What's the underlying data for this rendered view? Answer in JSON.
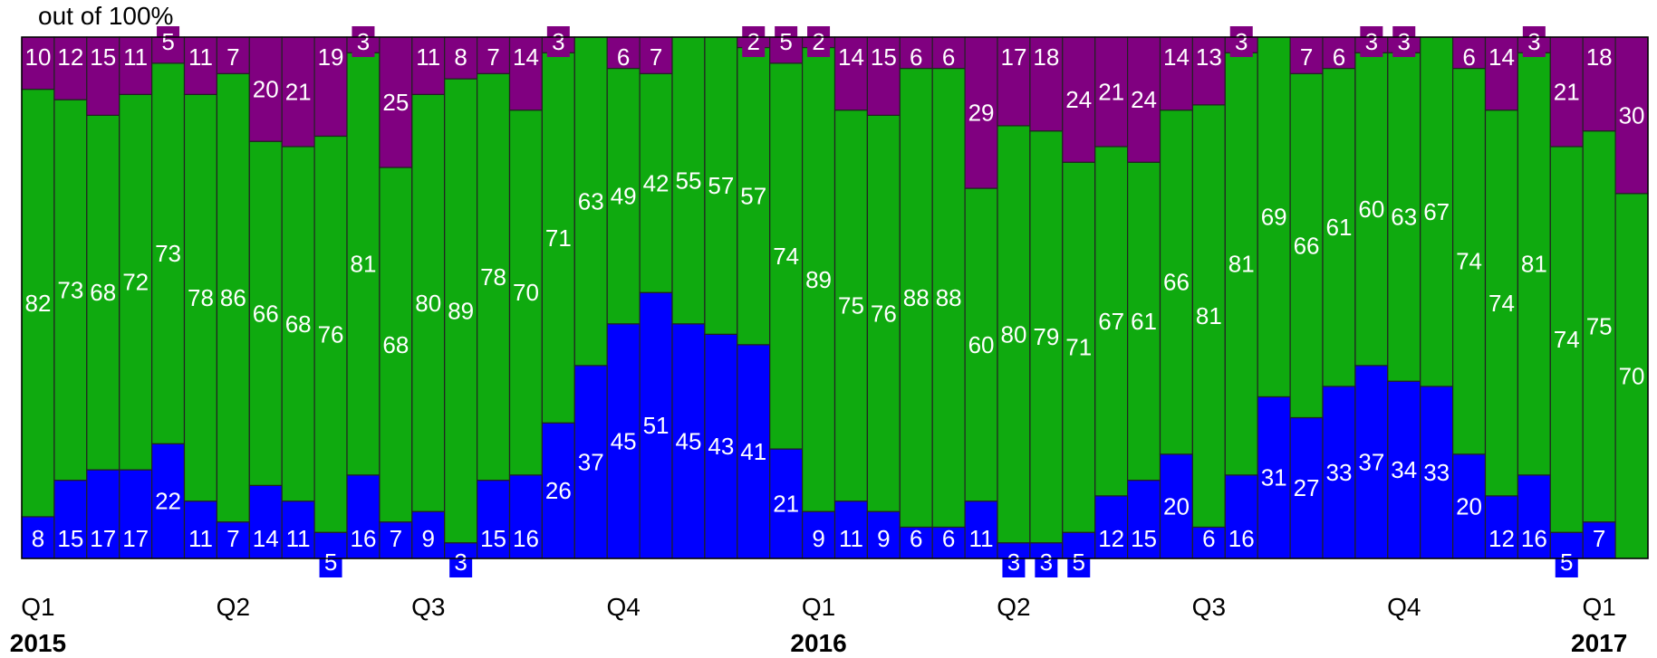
{
  "unit_label": "out of 100%",
  "colors": {
    "blue": "#0000ff",
    "green": "#0faa0f",
    "purple": "#800080"
  },
  "chart_data": {
    "type": "bar",
    "stacked": true,
    "ylim": [
      0,
      100
    ],
    "series": [
      {
        "key": "blue",
        "values": [
          8,
          15,
          17,
          17,
          22,
          11,
          7,
          14,
          11,
          5,
          16,
          7,
          9,
          3,
          15,
          16,
          26,
          37,
          45,
          51,
          45,
          43,
          41,
          21,
          9,
          11,
          9,
          6,
          6,
          11,
          3,
          3,
          5,
          12,
          15,
          20,
          6,
          16,
          31,
          27,
          33,
          37,
          34,
          33,
          20,
          12,
          16,
          5,
          7,
          0
        ]
      },
      {
        "key": "green",
        "values": [
          82,
          73,
          68,
          72,
          73,
          78,
          86,
          66,
          68,
          76,
          81,
          68,
          80,
          89,
          78,
          70,
          71,
          63,
          49,
          42,
          55,
          57,
          57,
          74,
          89,
          75,
          76,
          88,
          88,
          60,
          80,
          79,
          71,
          67,
          61,
          66,
          81,
          81,
          69,
          66,
          61,
          60,
          63,
          67,
          74,
          74,
          81,
          74,
          75,
          70
        ]
      },
      {
        "key": "purple",
        "values": [
          10,
          12,
          15,
          11,
          5,
          11,
          7,
          20,
          21,
          19,
          3,
          25,
          11,
          8,
          7,
          14,
          3,
          0,
          6,
          7,
          0,
          0,
          2,
          5,
          2,
          14,
          15,
          6,
          6,
          29,
          17,
          18,
          24,
          21,
          24,
          14,
          13,
          3,
          0,
          7,
          6,
          3,
          3,
          0,
          6,
          14,
          3,
          21,
          18,
          30
        ]
      }
    ],
    "quarter_labels": [
      {
        "label": "Q1",
        "bar": 0
      },
      {
        "label": "Q2",
        "bar": 6
      },
      {
        "label": "Q3",
        "bar": 12
      },
      {
        "label": "Q4",
        "bar": 18
      },
      {
        "label": "Q1",
        "bar": 24
      },
      {
        "label": "Q2",
        "bar": 30
      },
      {
        "label": "Q3",
        "bar": 36
      },
      {
        "label": "Q4",
        "bar": 42
      },
      {
        "label": "Q1",
        "bar": 48
      }
    ],
    "year_labels": [
      {
        "label": "2015",
        "bar": 0
      },
      {
        "label": "2016",
        "bar": 24
      },
      {
        "label": "2017",
        "bar": 48
      }
    ]
  }
}
